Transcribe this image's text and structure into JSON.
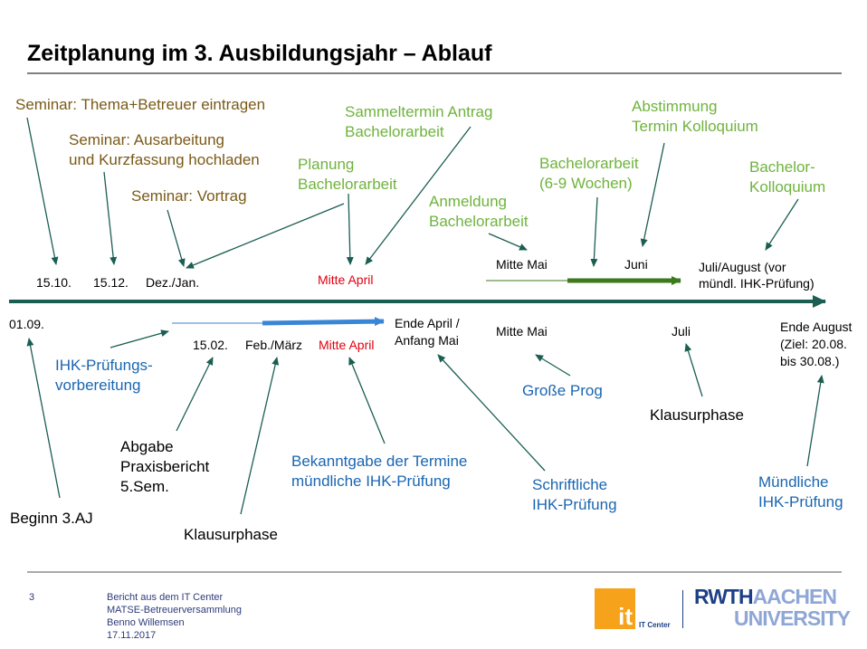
{
  "title": "Zeitplanung im 3. Ausbildungsjahr – Ablauf",
  "top_labels": {
    "seminar_thema": "Seminar: Thema+Betreuer eintragen",
    "seminar_ausarbeitung_1": "Seminar: Ausarbeitung",
    "seminar_ausarbeitung_2": "und Kurzfassung hochladen",
    "seminar_vortrag": "Seminar: Vortrag",
    "planung_1": "Planung",
    "planung_2": "Bachelorarbeit",
    "sammeltermin_1": "Sammeltermin Antrag",
    "sammeltermin_2": "Bachelorarbeit",
    "anmeldung_1": "Anmeldung",
    "anmeldung_2": "Bachelorarbeit",
    "bachelorarbeit_1": "Bachelorarbeit",
    "bachelorarbeit_2": "(6-9 Wochen)",
    "abstimmung_1": "Abstimmung",
    "abstimmung_2": "Termin Kolloquium",
    "kolloquium_1": "Bachelor-",
    "kolloquium_2": "Kolloquium"
  },
  "top_dates": {
    "d1510": "15.10.",
    "d1512": "15.12.",
    "dez_jan": "Dez./Jan.",
    "mitte_april": "Mitte April",
    "mitte_mai": "Mitte Mai",
    "juni": "Juni",
    "juli_aug_1": "Juli/August (vor",
    "juli_aug_2": "mündl. IHK-Prüfung)"
  },
  "bottom_dates": {
    "d0109": "01.09.",
    "d1502": "15.02.",
    "feb_maerz": "Feb./März",
    "mitte_april": "Mitte April",
    "ende_april_1": "Ende April /",
    "ende_april_2": "Anfang Mai",
    "mitte_mai": "Mitte Mai",
    "juli": "Juli",
    "ende_aug_1": "Ende August",
    "ende_aug_2": "(Ziel: 20.08.",
    "ende_aug_3": "bis 30.08.)"
  },
  "bottom_labels": {
    "ihk_vorb_1": "IHK-Prüfungs-",
    "ihk_vorb_2": "vorbereitung",
    "abgabe_1": "Abgabe",
    "abgabe_2": "Praxisbericht",
    "abgabe_3": "5.Sem.",
    "beginn": "Beginn 3.AJ",
    "klausurphase_1": "Klausurphase",
    "bekanntgabe_1": "Bekanntgabe der Termine",
    "bekanntgabe_2": "mündliche IHK-Prüfung",
    "grosse_prog": "Große Prog",
    "schriftliche_1": "Schriftliche",
    "schriftliche_2": "IHK-Prüfung",
    "klausurphase_2": "Klausurphase",
    "muendliche_1": "Mündliche",
    "muendliche_2": "IHK-Prüfung"
  },
  "footer": {
    "page": "3",
    "line1": "Bericht aus dem IT Center",
    "line2": "MATSE-Betreuerversammlung",
    "line3": "Benno Willemsen",
    "line4": "17.11.2017"
  },
  "logos": {
    "it_mark": "it",
    "it_center": "IT Center",
    "rwth_dark": "RWTH",
    "rwth_light": "AACHEN",
    "university": "UNIVERSITY"
  },
  "colors": {
    "olive": "#7a5a17",
    "green": "#6fb33d",
    "dark_green": "#3d7a1e",
    "blue": "#1a66b1",
    "bright_blue": "#3a86d6",
    "teal": "#1b5e52",
    "red": "#e0000e",
    "rwth_blue": "#1c3f88",
    "it_orange": "#f7a21b"
  }
}
